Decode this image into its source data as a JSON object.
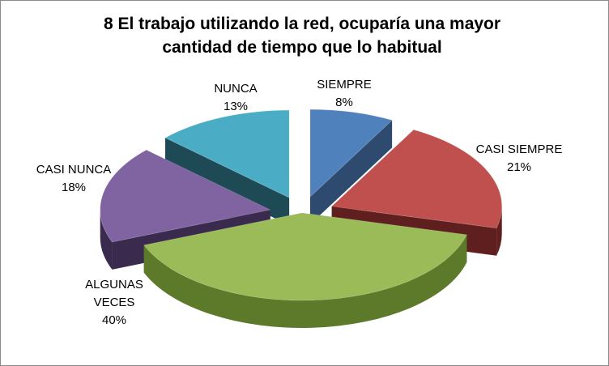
{
  "chart_data": {
    "type": "pie",
    "title_lines": [
      "8 El trabajo utilizando la red, ocuparía una mayor",
      "cantidad de tiempo que lo habitual"
    ],
    "slices": [
      {
        "label": "SIEMPRE",
        "label_lines": [
          "SIEMPRE"
        ],
        "value": 8,
        "value_text": "8%",
        "color": "#4F81BD",
        "side_color": "#2E4A6E",
        "exploded": true
      },
      {
        "label": "CASI SIEMPRE",
        "label_lines": [
          "CASI SIEMPRE"
        ],
        "value": 21,
        "value_text": "21%",
        "color": "#C0504D",
        "side_color": "#5E1F1E",
        "exploded": true
      },
      {
        "label": "ALGUNAS VECES",
        "label_lines": [
          "ALGUNAS",
          "VECES"
        ],
        "value": 40,
        "value_text": "40%",
        "color": "#9BBB59",
        "side_color": "#5C7A2A",
        "exploded": false
      },
      {
        "label": "CASI NUNCA",
        "label_lines": [
          "CASI NUNCA"
        ],
        "value": 18,
        "value_text": "18%",
        "color": "#8064A2",
        "side_color": "#3A2A4E",
        "exploded": true
      },
      {
        "label": "NUNCA",
        "label_lines": [
          "NUNCA"
        ],
        "value": 13,
        "value_text": "13%",
        "color": "#4BACC6",
        "side_color": "#1E4A56",
        "exploded": true
      }
    ],
    "three_d": true,
    "legend": "none",
    "data_labels": "category-and-percent"
  }
}
